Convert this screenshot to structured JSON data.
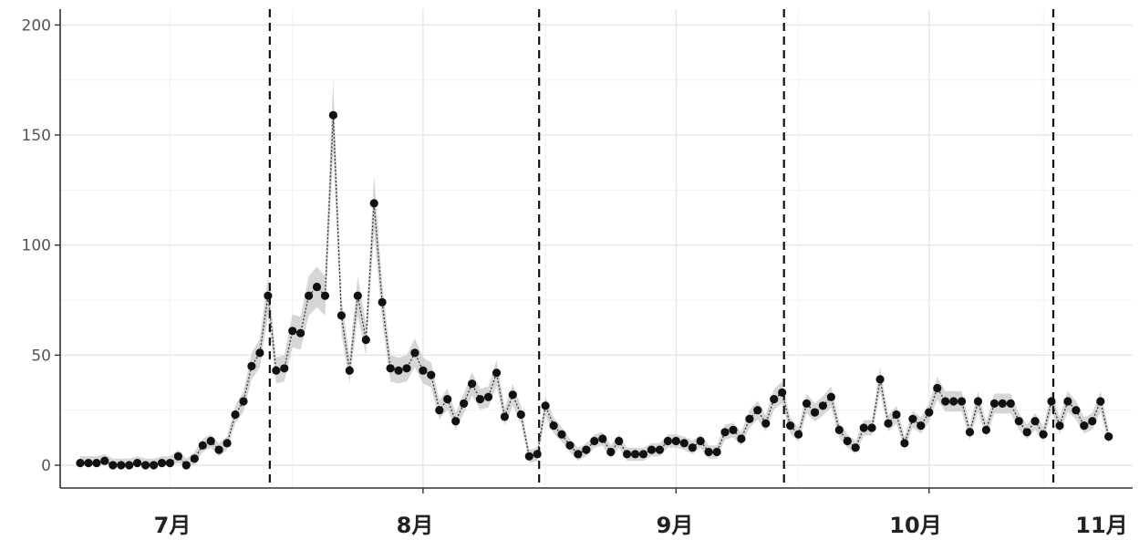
{
  "chart_data": {
    "type": "line",
    "title": "",
    "xlabel": "",
    "ylabel": "",
    "ylim": [
      0,
      200
    ],
    "y_ticks": [
      0,
      50,
      100,
      150,
      200
    ],
    "x_month_labels": [
      "7月",
      "8月",
      "9月",
      "10月",
      "11月"
    ],
    "grid": true,
    "legend": "none",
    "confidence_band": true,
    "series": [
      {
        "values": [
          1,
          1,
          1,
          2,
          0,
          0,
          0,
          1,
          0,
          0,
          1,
          1,
          4,
          0,
          3,
          9,
          11,
          7,
          10,
          23,
          29,
          45,
          51,
          77,
          43,
          44,
          61,
          60,
          77,
          81,
          77,
          159,
          68,
          43,
          77,
          57,
          119,
          74,
          44,
          43,
          44,
          51,
          43,
          41,
          25,
          30,
          20,
          28,
          37,
          30,
          31,
          42,
          22,
          32,
          23,
          4,
          5,
          27,
          18,
          14,
          9,
          5,
          7,
          11,
          12,
          6,
          11,
          5,
          5,
          5,
          7,
          7,
          11,
          11,
          10,
          8,
          11,
          6,
          6,
          15,
          16,
          12,
          21,
          25,
          19,
          30,
          33,
          18,
          14,
          28,
          24,
          27,
          31,
          16,
          11,
          8,
          17,
          17,
          39,
          19,
          23,
          10,
          21,
          18,
          24,
          35,
          29,
          29,
          29,
          15,
          29,
          16,
          28,
          28,
          28,
          20,
          15,
          20,
          14,
          29,
          18,
          29,
          25,
          18,
          20,
          29,
          13
        ]
      }
    ],
    "vertical_dashed_line_days": [
      23,
      56,
      86,
      119
    ],
    "colors": {
      "point": "#111111",
      "line": "#333333",
      "band": "#c8c8c8",
      "grid_major": "#e6e6e6",
      "grid_minor": "#f2f2f2",
      "vline": "#111111"
    }
  }
}
